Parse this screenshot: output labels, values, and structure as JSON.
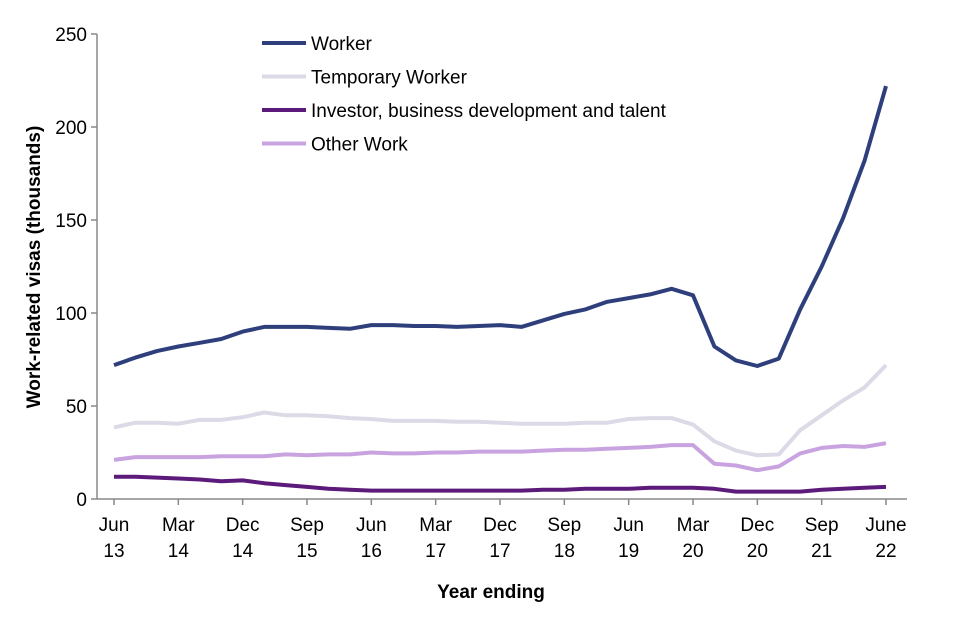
{
  "chart_data": {
    "type": "line",
    "title": "",
    "xlabel": "Year ending",
    "ylabel": "Work-related visas (thousands)",
    "ylim": [
      0,
      250
    ],
    "yticks": [
      0,
      50,
      100,
      150,
      200,
      250
    ],
    "grid": false,
    "legend_position": "top-center",
    "x": [
      "Jun 13",
      "Sep 13",
      "Dec 13",
      "Mar 14",
      "Jun 14",
      "Sep 14",
      "Dec 14",
      "Mar 15",
      "Jun 15",
      "Sep 15",
      "Dec 15",
      "Mar 16",
      "Jun 16",
      "Sep 16",
      "Dec 16",
      "Mar 17",
      "Jun 17",
      "Sep 17",
      "Dec 17",
      "Mar 18",
      "Jun 18",
      "Sep 18",
      "Dec 18",
      "Mar 19",
      "Jun 19",
      "Sep 19",
      "Dec 19",
      "Mar 20",
      "Jun 20",
      "Sep 20",
      "Dec 20",
      "Mar 21",
      "Jun 21",
      "Sep 21",
      "Dec 21",
      "Mar 22",
      "June 22"
    ],
    "tick_labels": [
      {
        "index": 0,
        "month": "Jun",
        "year": "13"
      },
      {
        "index": 3,
        "month": "Mar",
        "year": "14"
      },
      {
        "index": 6,
        "month": "Dec",
        "year": "14"
      },
      {
        "index": 9,
        "month": "Sep",
        "year": "15"
      },
      {
        "index": 12,
        "month": "Jun",
        "year": "16"
      },
      {
        "index": 15,
        "month": "Mar",
        "year": "17"
      },
      {
        "index": 18,
        "month": "Dec",
        "year": "17"
      },
      {
        "index": 21,
        "month": "Sep",
        "year": "18"
      },
      {
        "index": 24,
        "month": "Jun",
        "year": "19"
      },
      {
        "index": 27,
        "month": "Mar",
        "year": "20"
      },
      {
        "index": 30,
        "month": "Dec",
        "year": "20"
      },
      {
        "index": 33,
        "month": "Sep",
        "year": "21"
      },
      {
        "index": 36,
        "month": "June",
        "year": "22"
      }
    ],
    "series": [
      {
        "name": "Worker",
        "color": "#2e3f7c",
        "values": [
          72,
          76,
          79.5,
          82,
          84,
          86,
          90,
          92.5,
          92.5,
          92.5,
          92,
          91.5,
          93.5,
          93.5,
          93,
          93,
          92.5,
          93,
          93.5,
          92.5,
          96,
          99.5,
          102,
          106,
          108,
          110,
          113,
          109.5,
          82,
          74.5,
          71.5,
          75.5,
          102,
          125,
          151,
          182,
          222
        ]
      },
      {
        "name": "Temporary Worker",
        "color": "#dcdae6",
        "values": [
          38.5,
          41,
          41,
          40.5,
          42.5,
          42.5,
          44,
          46.5,
          45,
          45,
          44.5,
          43.5,
          43,
          42,
          42,
          42,
          41.5,
          41.5,
          41,
          40.5,
          40.5,
          40.5,
          41,
          41,
          43,
          43.5,
          43.5,
          40,
          31,
          26,
          23.5,
          24,
          37,
          45,
          53,
          60,
          72
        ]
      },
      {
        "name": "Investor, business development and talent",
        "color": "#5c1a7a",
        "values": [
          12,
          12,
          11.5,
          11,
          10.5,
          9.5,
          10,
          8.5,
          7.5,
          6.5,
          5.5,
          5,
          4.5,
          4.5,
          4.5,
          4.5,
          4.5,
          4.5,
          4.5,
          4.5,
          5,
          5,
          5.5,
          5.5,
          5.5,
          6,
          6,
          6,
          5.5,
          4,
          4,
          4,
          4,
          5,
          5.5,
          6,
          6.5
        ]
      },
      {
        "name": "Other Work",
        "color": "#c9a3e0",
        "values": [
          21,
          22.5,
          22.5,
          22.5,
          22.5,
          23,
          23,
          23,
          24,
          23.5,
          24,
          24,
          25,
          24.5,
          24.5,
          25,
          25,
          25.5,
          25.5,
          25.5,
          26,
          26.5,
          26.5,
          27,
          27.5,
          28,
          29,
          29,
          19,
          18,
          15.5,
          17.5,
          24.5,
          27.5,
          28.5,
          28,
          30
        ]
      }
    ]
  }
}
